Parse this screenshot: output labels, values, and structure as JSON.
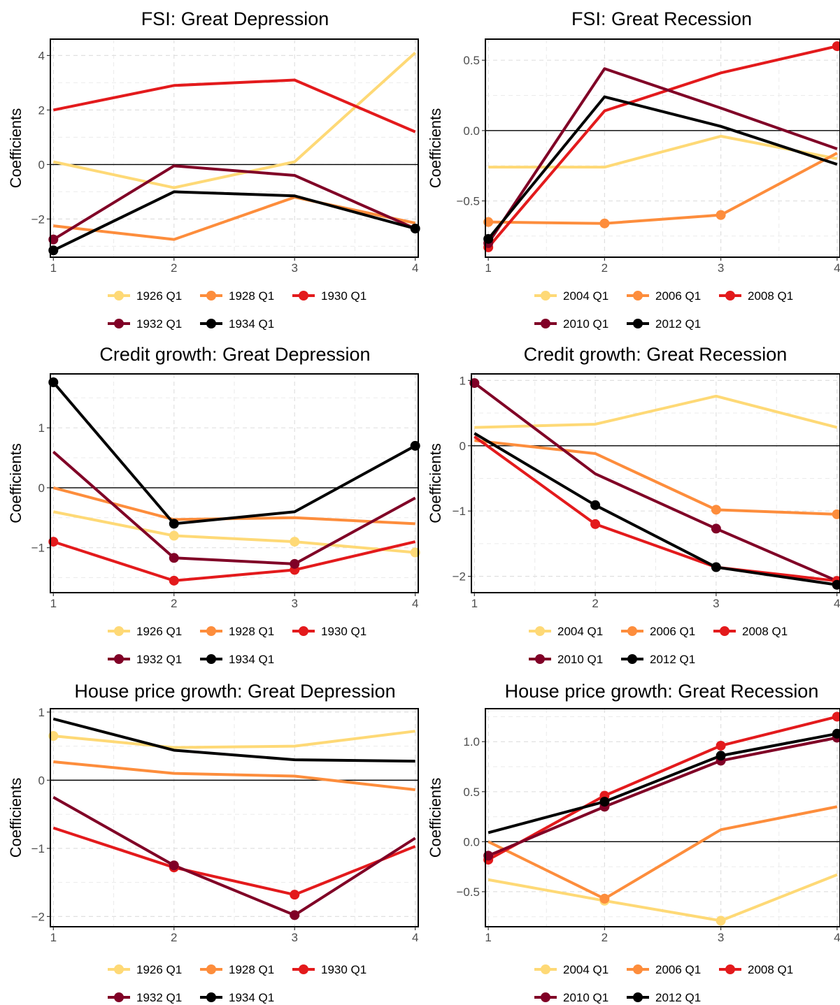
{
  "chart_data": [
    {
      "type": "line",
      "title": "FSI: Great Depression",
      "ylabel": "Coefficients",
      "x": [
        1,
        2,
        3,
        4
      ],
      "ylim": [
        -3.4,
        4.6
      ],
      "yticks": [
        -2,
        0,
        2,
        4
      ],
      "yticklabels": [
        "−2",
        "0",
        "2",
        "4"
      ],
      "grid": true,
      "legend": "bottom",
      "series": [
        {
          "name": "1926 Q1",
          "color": "#fed976",
          "values": [
            0.1,
            -0.85,
            0.1,
            4.1
          ],
          "markers": []
        },
        {
          "name": "1928 Q1",
          "color": "#fd8d3c",
          "values": [
            -2.25,
            -2.75,
            -1.2,
            -2.15
          ],
          "markers": []
        },
        {
          "name": "1930 Q1",
          "color": "#e31a1c",
          "values": [
            2.0,
            2.9,
            3.1,
            1.2
          ],
          "markers": []
        },
        {
          "name": "1932 Q1",
          "color": "#800026",
          "values": [
            -2.75,
            -0.05,
            -0.4,
            -2.35
          ],
          "markers": [
            1
          ]
        },
        {
          "name": "1934 Q1",
          "color": "#000000",
          "values": [
            -3.15,
            -1.0,
            -1.15,
            -2.35
          ],
          "markers": [
            1,
            4
          ]
        }
      ]
    },
    {
      "type": "line",
      "title": "FSI: Great Recession",
      "ylabel": "Coefficients",
      "x": [
        1,
        2,
        3,
        4
      ],
      "ylim": [
        -0.9,
        0.65
      ],
      "yticks": [
        -0.5,
        0.0,
        0.5
      ],
      "yticklabels": [
        "−0.5",
        "0.0",
        "0.5"
      ],
      "grid": true,
      "legend": "bottom",
      "series": [
        {
          "name": "2004 Q1",
          "color": "#fed976",
          "values": [
            -0.26,
            -0.26,
            -0.04,
            -0.2
          ],
          "markers": []
        },
        {
          "name": "2006 Q1",
          "color": "#fd8d3c",
          "values": [
            -0.65,
            -0.66,
            -0.6,
            -0.16
          ],
          "markers": [
            1,
            2,
            3
          ]
        },
        {
          "name": "2008 Q1",
          "color": "#e31a1c",
          "values": [
            -0.83,
            0.14,
            0.41,
            0.6
          ],
          "markers": [
            1,
            4
          ]
        },
        {
          "name": "2010 Q1",
          "color": "#800026",
          "values": [
            -0.8,
            0.44,
            0.16,
            -0.13
          ],
          "markers": [
            1
          ]
        },
        {
          "name": "2012 Q1",
          "color": "#000000",
          "values": [
            -0.77,
            0.24,
            0.03,
            -0.24
          ],
          "markers": [
            1
          ]
        }
      ]
    },
    {
      "type": "line",
      "title": "Credit growth: Great Depression",
      "ylabel": "Coefficients",
      "x": [
        1,
        2,
        3,
        4
      ],
      "ylim": [
        -1.75,
        1.9
      ],
      "yticks": [
        -1,
        0,
        1
      ],
      "yticklabels": [
        "−1",
        "0",
        "1"
      ],
      "grid": true,
      "legend": "bottom",
      "series": [
        {
          "name": "1926 Q1",
          "color": "#fed976",
          "values": [
            -0.4,
            -0.8,
            -0.9,
            -1.08
          ],
          "markers": [
            2,
            3,
            4
          ]
        },
        {
          "name": "1928 Q1",
          "color": "#fd8d3c",
          "values": [
            0.0,
            -0.53,
            -0.5,
            -0.6
          ],
          "markers": []
        },
        {
          "name": "1930 Q1",
          "color": "#e31a1c",
          "values": [
            -0.9,
            -1.55,
            -1.37,
            -0.9
          ],
          "markers": [
            1,
            2,
            3
          ]
        },
        {
          "name": "1932 Q1",
          "color": "#800026",
          "values": [
            0.6,
            -1.17,
            -1.27,
            -0.17
          ],
          "markers": [
            2,
            3
          ]
        },
        {
          "name": "1934 Q1",
          "color": "#000000",
          "values": [
            1.76,
            -0.6,
            -0.4,
            0.7
          ],
          "markers": [
            1,
            2,
            4
          ]
        }
      ]
    },
    {
      "type": "line",
      "title": "Credit growth: Great Recession",
      "ylabel": "Coefficients",
      "x": [
        1,
        2,
        3,
        4
      ],
      "ylim": [
        -2.25,
        1.1
      ],
      "yticks": [
        -2,
        -1,
        0,
        1
      ],
      "yticklabels": [
        "−2",
        "−1",
        "0",
        "1"
      ],
      "grid": true,
      "legend": "bottom",
      "series": [
        {
          "name": "2004 Q1",
          "color": "#fed976",
          "values": [
            0.28,
            0.33,
            0.76,
            0.28
          ],
          "markers": []
        },
        {
          "name": "2006 Q1",
          "color": "#fd8d3c",
          "values": [
            0.08,
            -0.12,
            -0.98,
            -1.05
          ],
          "markers": [
            3,
            4
          ]
        },
        {
          "name": "2008 Q1",
          "color": "#e31a1c",
          "values": [
            0.14,
            -1.2,
            -1.86,
            -2.07
          ],
          "markers": [
            2,
            4
          ]
        },
        {
          "name": "2010 Q1",
          "color": "#800026",
          "values": [
            0.96,
            -0.43,
            -1.27,
            -2.07
          ],
          "markers": [
            1,
            3
          ]
        },
        {
          "name": "2012 Q1",
          "color": "#000000",
          "values": [
            0.19,
            -0.91,
            -1.86,
            -2.13
          ],
          "markers": [
            2,
            3,
            4
          ]
        }
      ]
    },
    {
      "type": "line",
      "title": "House price growth: Great Depression",
      "ylabel": "Coefficients",
      "x": [
        1,
        2,
        3,
        4
      ],
      "ylim": [
        -2.15,
        1.05
      ],
      "yticks": [
        -2,
        -1,
        0,
        1
      ],
      "yticklabels": [
        "−2",
        "−1",
        "0",
        "1"
      ],
      "grid": true,
      "legend": "bottom",
      "series": [
        {
          "name": "1926 Q1",
          "color": "#fed976",
          "values": [
            0.65,
            0.48,
            0.5,
            0.72
          ],
          "markers": [
            1
          ]
        },
        {
          "name": "1928 Q1",
          "color": "#fd8d3c",
          "values": [
            0.27,
            0.1,
            0.06,
            -0.14
          ],
          "markers": []
        },
        {
          "name": "1930 Q1",
          "color": "#e31a1c",
          "values": [
            -0.7,
            -1.28,
            -1.68,
            -0.97
          ],
          "markers": [
            2,
            3
          ]
        },
        {
          "name": "1932 Q1",
          "color": "#800026",
          "values": [
            -0.25,
            -1.25,
            -1.98,
            -0.85
          ],
          "markers": [
            2,
            3
          ]
        },
        {
          "name": "1934 Q1",
          "color": "#000000",
          "values": [
            0.9,
            0.44,
            0.3,
            0.28
          ],
          "markers": []
        }
      ]
    },
    {
      "type": "line",
      "title": "House price growth: Great Recession",
      "ylabel": "Coefficients",
      "x": [
        1,
        2,
        3,
        4
      ],
      "ylim": [
        -0.85,
        1.33
      ],
      "yticks": [
        -0.5,
        0.0,
        0.5,
        1.0
      ],
      "yticklabels": [
        "−0.5",
        "0.0",
        "0.5",
        "1.0"
      ],
      "grid": true,
      "legend": "bottom",
      "series": [
        {
          "name": "2004 Q1",
          "color": "#fed976",
          "values": [
            -0.38,
            -0.59,
            -0.79,
            -0.33
          ],
          "markers": [
            2,
            3
          ]
        },
        {
          "name": "2006 Q1",
          "color": "#fd8d3c",
          "values": [
            0.0,
            -0.57,
            0.12,
            0.35
          ],
          "markers": [
            2
          ]
        },
        {
          "name": "2008 Q1",
          "color": "#e31a1c",
          "values": [
            -0.18,
            0.46,
            0.96,
            1.25
          ],
          "markers": [
            1,
            2,
            3,
            4
          ]
        },
        {
          "name": "2010 Q1",
          "color": "#800026",
          "values": [
            -0.14,
            0.35,
            0.81,
            1.04
          ],
          "markers": [
            1,
            2,
            3,
            4
          ]
        },
        {
          "name": "2012 Q1",
          "color": "#000000",
          "values": [
            0.09,
            0.4,
            0.86,
            1.08
          ],
          "markers": [
            2,
            3,
            4
          ]
        }
      ]
    }
  ]
}
